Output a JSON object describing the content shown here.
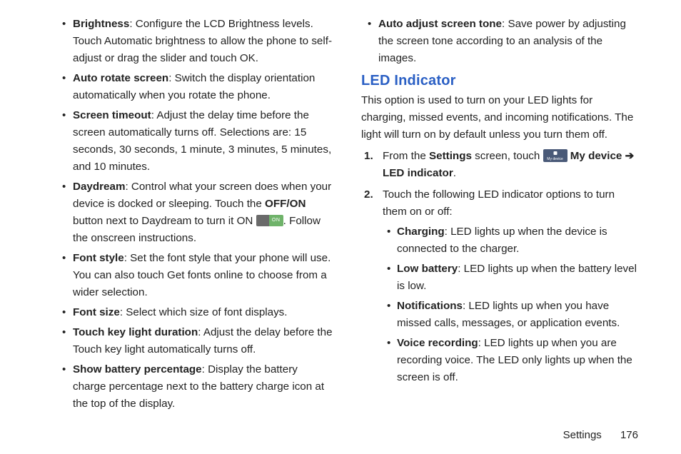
{
  "left_bullets": [
    {
      "term": "Brightness",
      "desc": ": Configure the LCD Brightness levels. Touch Automatic brightness to allow the phone to self-adjust or drag the slider and touch OK."
    },
    {
      "term": "Auto rotate screen",
      "desc": ": Switch the display orientation automatically when you rotate the phone."
    },
    {
      "term": "Screen timeout",
      "desc": ": Adjust the delay time before the screen automatically turns off. Selections are: 15 seconds, 30 seconds, 1 minute, 3 minutes, 5 minutes, and 10 minutes."
    },
    {
      "term": "Daydream",
      "desc_pre": ": Control what your screen does when your device is docked or sleeping. Touch the ",
      "inline_bold_1": "OFF/ON",
      "desc_mid": " button next to Daydream to turn it ON ",
      "toggle_text": "ON",
      "desc_post": ". Follow the onscreen instructions."
    },
    {
      "term": "Font style",
      "desc": ": Set the font style that your phone will use. You can also touch Get fonts online to choose from a wider selection."
    },
    {
      "term": "Font size",
      "desc": ": Select which size of font displays."
    },
    {
      "term": "Touch key light duration",
      "desc": ": Adjust the delay before the Touch key light automatically turns off."
    },
    {
      "term": "Show battery percentage",
      "desc": ": Display the battery charge percentage next to the battery charge icon at the top of the display."
    }
  ],
  "right_top_bullet": {
    "term": "Auto adjust screen tone",
    "desc": ": Save power by adjusting the screen tone according to an analysis of the images."
  },
  "led": {
    "heading": "LED Indicator",
    "intro": "This option is used to turn on your LED lights for charging, missed events, and incoming notifications. The light will turn on by default unless you turn them off.",
    "step1": {
      "pre": "From the ",
      "settings": "Settings",
      "mid": " screen, touch ",
      "icon_label": "My device",
      "after_icon": " My device ",
      "arrow": "➔",
      "end": " LED indicator",
      "period": "."
    },
    "step2_lead": "Touch the following LED indicator options to turn them on or off:",
    "sub_bullets": [
      {
        "term": "Charging",
        "desc": ": LED lights up when the device is connected to the charger."
      },
      {
        "term": "Low battery",
        "desc": ": LED lights up when the battery level is low."
      },
      {
        "term": "Notifications",
        "desc": ": LED lights up when you have missed calls, messages, or application events."
      },
      {
        "term": "Voice recording",
        "desc": ": LED lights up when you are recording voice. The LED only lights up when the screen is off."
      }
    ]
  },
  "footer": {
    "section": "Settings",
    "page": "176"
  },
  "colors": {
    "heading_blue": "#2a5fc4",
    "toggle_off": "#6a6a6a",
    "toggle_on": "#6fb36a",
    "icon_bg": "#4a5a78",
    "text": "#222222",
    "background": "#ffffff"
  }
}
